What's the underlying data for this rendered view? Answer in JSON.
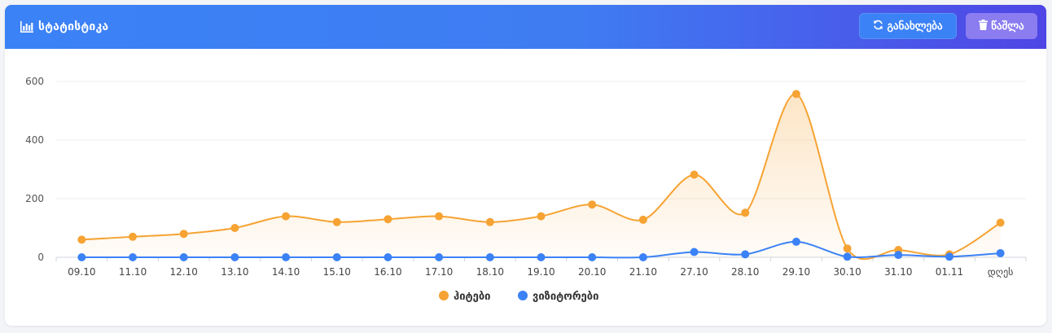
{
  "header": {
    "title": "სტატისტიკა",
    "refresh_label": "განახლება",
    "delete_label": "წაშლა",
    "icons": {
      "title": "bar-chart-icon",
      "refresh": "refresh-icon",
      "delete": "trash-icon"
    }
  },
  "colors": {
    "header_start": "#3b82f6",
    "header_end": "#4f46e5",
    "series_hits": "#f6a333",
    "series_visitors": "#3b82f6"
  },
  "chart_data": {
    "type": "line",
    "categories": [
      "09.10",
      "11.10",
      "12.10",
      "13.10",
      "14.10",
      "15.10",
      "16.10",
      "17.10",
      "18.10",
      "19.10",
      "20.10",
      "21.10",
      "27.10",
      "28.10",
      "29.10",
      "30.10",
      "31.10",
      "01.11",
      "დღეს"
    ],
    "series": [
      {
        "name": "ჰიტები",
        "color": "#f6a333",
        "values": [
          60,
          70,
          80,
          100,
          140,
          120,
          130,
          140,
          120,
          140,
          180,
          128,
          282,
          152,
          557,
          30,
          25,
          10,
          118
        ]
      },
      {
        "name": "ვიზიტორები",
        "color": "#3b82f6",
        "values": [
          0,
          0,
          0,
          0,
          0,
          0,
          0,
          0,
          0,
          0,
          0,
          0,
          18,
          10,
          53,
          2,
          8,
          2,
          14
        ]
      }
    ],
    "ylim": [
      0,
      600
    ],
    "yticks": [
      0,
      200,
      400,
      600
    ],
    "grid": true,
    "legend_position": "bottom",
    "fill_area": true
  }
}
